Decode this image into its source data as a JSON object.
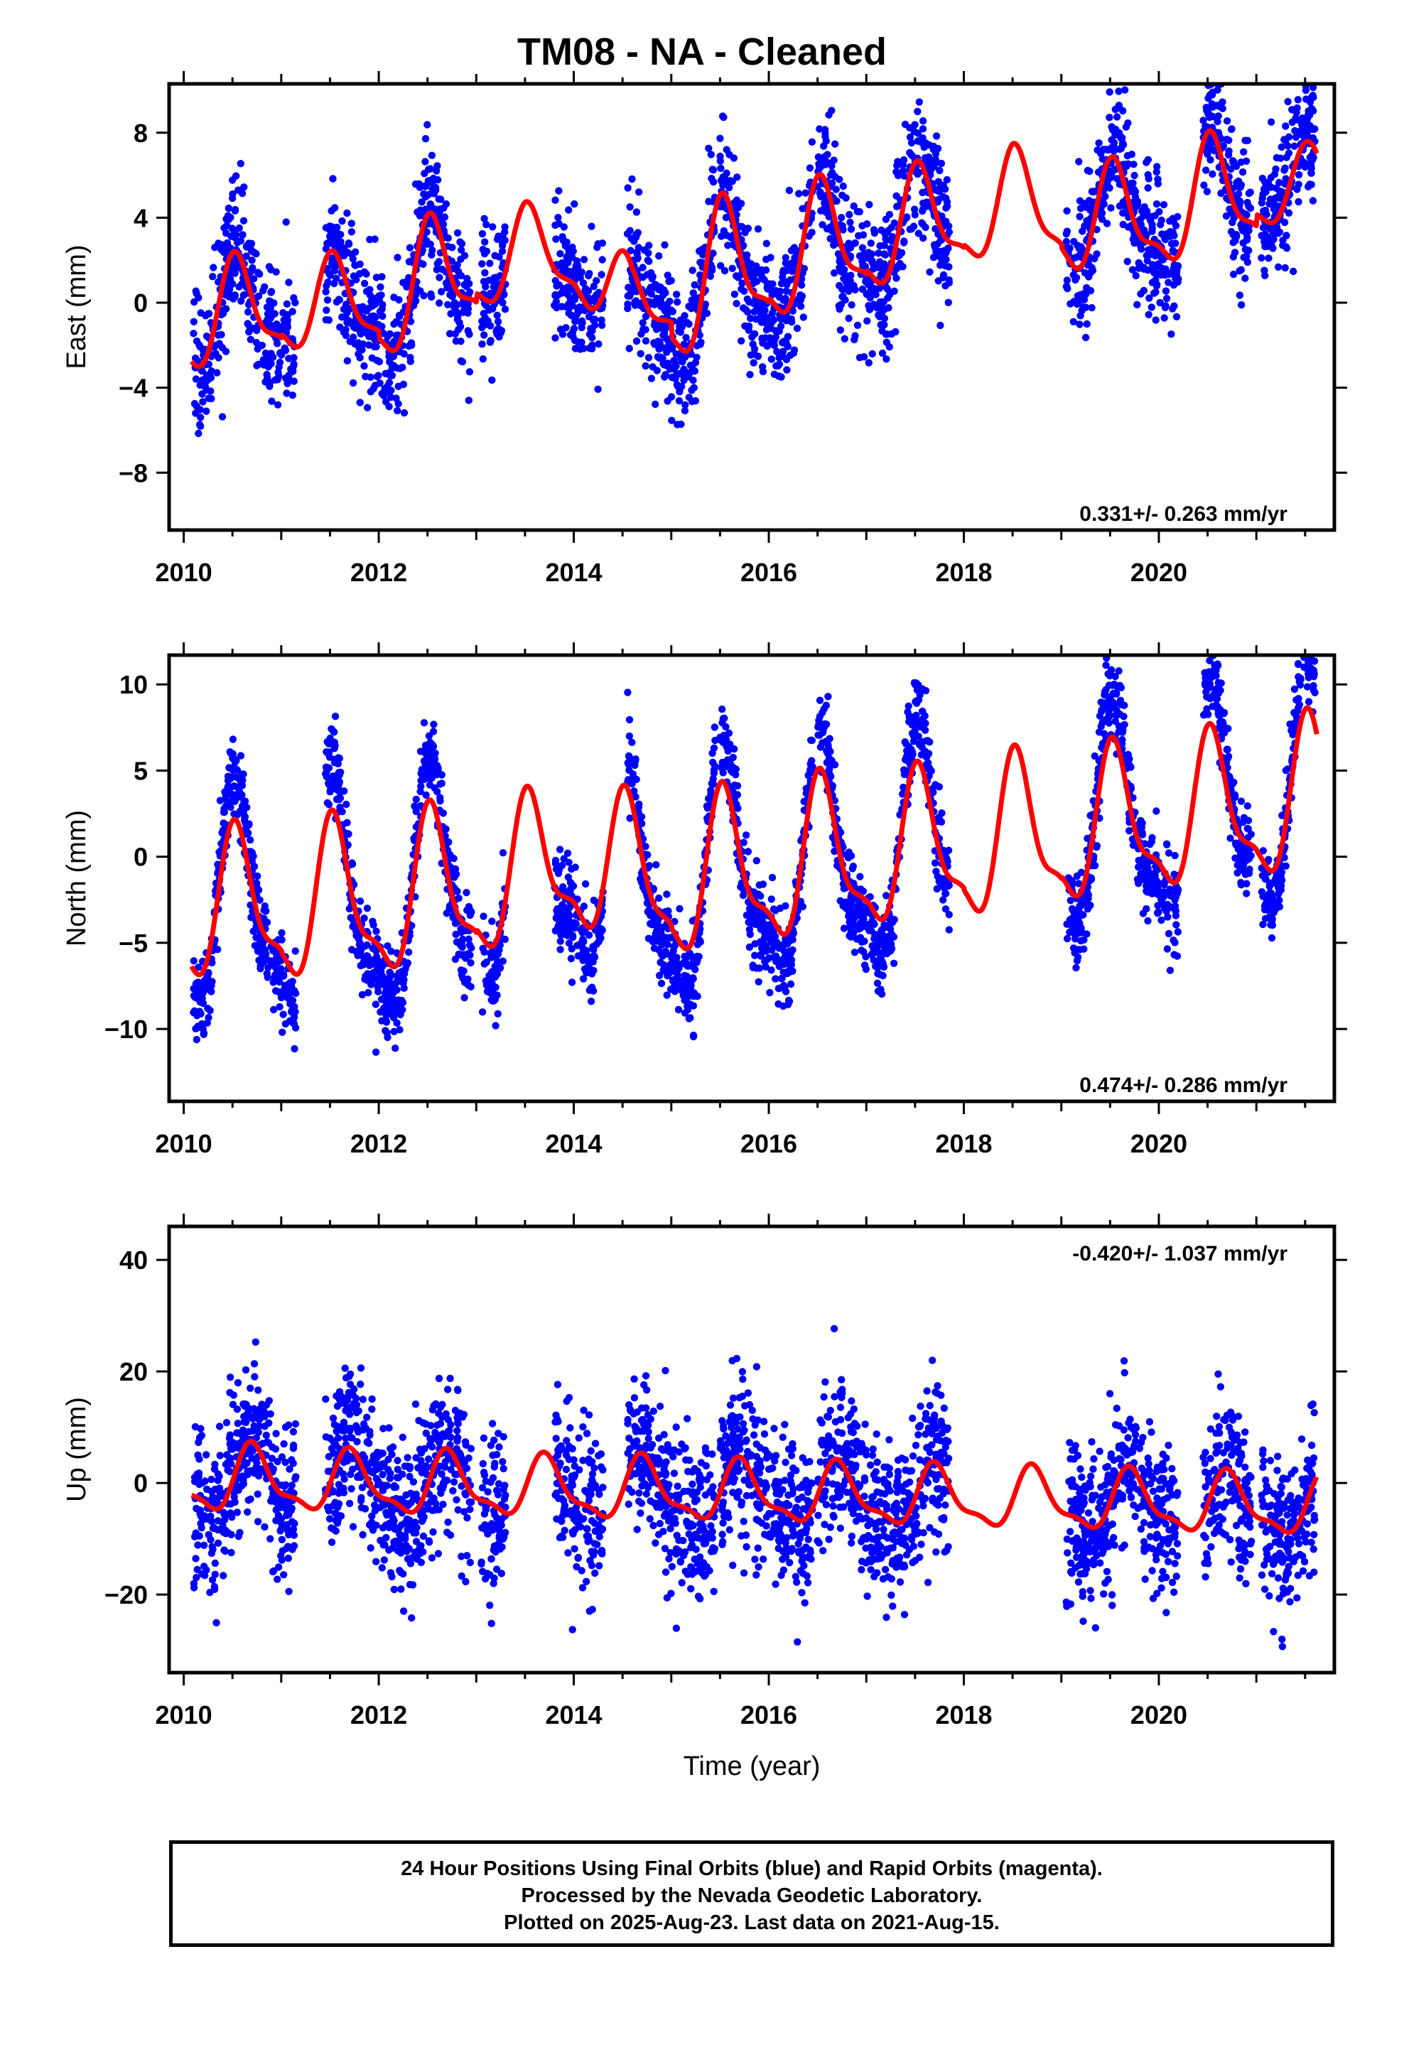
{
  "title": "TM08  - NA - Cleaned",
  "xlabel": "Time (year)",
  "footer": {
    "line1": "24 Hour Positions Using Final Orbits (blue) and Rapid Orbits (magenta).",
    "line2": "Processed by the Nevada Geodetic Laboratory.",
    "line3": "Plotted on 2025-Aug-23. Last data on 2021-Aug-15."
  },
  "colors": {
    "points": "#0000ff",
    "model": "#ff0000",
    "frame": "#000000"
  },
  "chart_data": [
    {
      "type": "scatter",
      "component": "east",
      "ylabel": "East (mm)",
      "rate_text": "0.331+/- 0.263 mm/yr",
      "xlim": [
        2009.85,
        2021.8
      ],
      "ylim": [
        -10.7,
        10.3
      ],
      "xticks": [
        2010,
        2012,
        2014,
        2016,
        2018,
        2020
      ],
      "yticks": [
        8,
        4,
        0,
        -4,
        -8
      ],
      "ytick_labels": [
        "8",
        "4",
        "0",
        "−4",
        "−8"
      ],
      "data_segments": [
        [
          2010.1,
          2011.15
        ],
        [
          2011.45,
          2012.95
        ],
        [
          2013.05,
          2013.3
        ],
        [
          2013.8,
          2014.3
        ],
        [
          2014.55,
          2015.45
        ],
        [
          2015.5,
          2016.45
        ],
        [
          2016.5,
          2017.85
        ],
        [
          2019.05,
          2020.2
        ],
        [
          2020.45,
          2020.95
        ],
        [
          2021.05,
          2021.6
        ]
      ],
      "model": {
        "offset": -0.2,
        "trend": 0.331,
        "amplitude": [
          2.3,
          2.0,
          2.6,
          1.9,
          1.8,
          3.0,
          2.7,
          2.4,
          2.2,
          2.5,
          2.5,
          1.6
        ],
        "peak_phase": 0.55,
        "knots": [
          [
            2010.0,
            -0.8
          ],
          [
            2011.0,
            -0.4
          ],
          [
            2012.0,
            -0.6
          ],
          [
            2012.9,
            0.7
          ],
          [
            2013.5,
            1.3
          ],
          [
            2014.0,
            0.9
          ],
          [
            2014.6,
            -1.6
          ],
          [
            2015.0,
            -1.3
          ],
          [
            2015.6,
            -0.3
          ],
          [
            2016.5,
            0.5
          ],
          [
            2017.5,
            1.2
          ],
          [
            2018.5,
            2.0
          ],
          [
            2019.5,
            0.6
          ],
          [
            2020.5,
            1.5
          ],
          [
            2021.6,
            1.9
          ]
        ]
      },
      "points_summary": {
        "count": 2900,
        "scatter_sd_mm": 1.6,
        "seasonal_scale": 1.1
      }
    },
    {
      "type": "scatter",
      "component": "north",
      "ylabel": "North (mm)",
      "rate_text": "0.474+/- 0.286 mm/yr",
      "xlim": [
        2009.85,
        2021.8
      ],
      "ylim": [
        -14.2,
        11.7
      ],
      "xticks": [
        2010,
        2012,
        2014,
        2016,
        2018,
        2020
      ],
      "yticks": [
        10,
        5,
        0,
        -5,
        -10
      ],
      "ytick_labels": [
        "10",
        "5",
        "0",
        "−5",
        "−10"
      ],
      "data_segments": [
        [
          2010.1,
          2011.15
        ],
        [
          2011.45,
          2012.95
        ],
        [
          2013.05,
          2013.3
        ],
        [
          2013.8,
          2014.3
        ],
        [
          2014.55,
          2015.45
        ],
        [
          2015.5,
          2016.45
        ],
        [
          2016.5,
          2017.85
        ],
        [
          2019.05,
          2020.2
        ],
        [
          2020.45,
          2020.95
        ],
        [
          2021.05,
          2021.6
        ]
      ],
      "model": {
        "offset": -3.2,
        "trend": 0.474,
        "amplitude": [
          4.0,
          4.2,
          4.2,
          3.9,
          3.9,
          4.2,
          4.2,
          4.0,
          4.2,
          4.0,
          4.0,
          4.1
        ],
        "peak_phase": 0.55,
        "knots": [
          [
            2010.0,
            0.0
          ],
          [
            2011.0,
            -0.3
          ],
          [
            2012.0,
            -0.4
          ],
          [
            2013.0,
            -0.1
          ],
          [
            2014.0,
            1.0
          ],
          [
            2015.0,
            -0.8
          ],
          [
            2016.0,
            -0.4
          ],
          [
            2017.0,
            -0.2
          ],
          [
            2018.0,
            0.0
          ],
          [
            2019.0,
            0.2
          ],
          [
            2020.0,
            0.5
          ],
          [
            2021.6,
            1.0
          ]
        ]
      },
      "points_summary": {
        "count": 2900,
        "scatter_sd_mm": 1.3,
        "seasonal_scale": 1.5
      }
    },
    {
      "type": "scatter",
      "component": "up",
      "ylabel": "Up (mm)",
      "rate_text": "-0.420+/- 1.037 mm/yr",
      "xlim": [
        2009.85,
        2021.8
      ],
      "ylim": [
        -34,
        46
      ],
      "xticks": [
        2010,
        2012,
        2014,
        2016,
        2018,
        2020
      ],
      "yticks": [
        40,
        20,
        0,
        -20
      ],
      "ytick_labels": [
        "40",
        "20",
        "0",
        "−20"
      ],
      "data_segments": [
        [
          2010.1,
          2011.15
        ],
        [
          2011.45,
          2012.95
        ],
        [
          2013.05,
          2013.3
        ],
        [
          2013.8,
          2014.3
        ],
        [
          2014.55,
          2015.45
        ],
        [
          2015.5,
          2016.45
        ],
        [
          2016.5,
          2017.85
        ],
        [
          2019.05,
          2020.2
        ],
        [
          2020.45,
          2020.95
        ],
        [
          2021.05,
          2021.6
        ]
      ],
      "model": {
        "offset": 0.5,
        "trend": -0.42,
        "amplitude": [
          5.5,
          5.0,
          5.2,
          5.0,
          5.2,
          5.0,
          5.0,
          5.0,
          5.0,
          5.0,
          5.0,
          5.0
        ],
        "peak_phase": 0.72,
        "knots": [
          [
            2010.0,
            0.0
          ],
          [
            2021.6,
            0.0
          ]
        ]
      },
      "points_summary": {
        "count": 2900,
        "scatter_sd_mm": 7.0,
        "seasonal_scale": 1.2
      }
    }
  ]
}
